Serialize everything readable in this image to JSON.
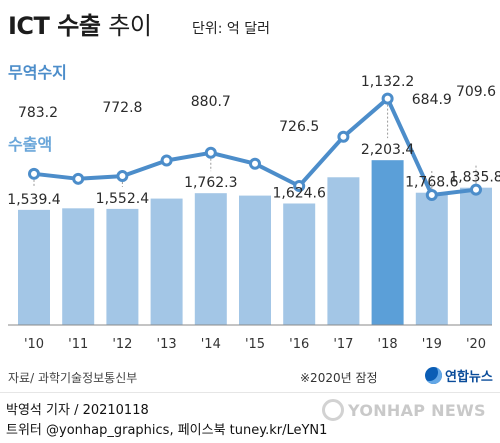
{
  "header": {
    "title_bold": "ICT 수출",
    "title_light": "추이",
    "unit": "단위: 억 달러"
  },
  "chart_data": {
    "type": "bar+line",
    "categories": [
      "'10",
      "'11",
      "'12",
      "'13",
      "'14",
      "'15",
      "'16",
      "'17",
      "'18",
      "'19",
      "'20"
    ],
    "series": [
      {
        "name": "수출액",
        "type": "bar",
        "values": [
          1539.4,
          1560,
          1552.4,
          1690,
          1762.3,
          1730,
          1624.6,
          1975,
          2203.4,
          1768.6,
          1835.8
        ],
        "labels": [
          "1,539.4",
          "",
          "1,552.4",
          "",
          "1,762.3",
          "",
          "1,624.6",
          "",
          "2,203.4",
          "1,768.6",
          "1,835.8"
        ],
        "color": "#a3c6e6",
        "highlight_index": 8,
        "highlight_color": "#5b9fd8"
      },
      {
        "name": "무역수지",
        "type": "line",
        "values": [
          783.2,
          760,
          772.8,
          845,
          880.7,
          830,
          726.5,
          955,
          1132.2,
          684.9,
          709.6
        ],
        "labels": [
          "783.2",
          "",
          "772.8",
          "",
          "880.7",
          "",
          "726.5",
          "",
          "1,132.2",
          "684.9",
          "709.6"
        ],
        "color": "#4c8dca"
      }
    ]
  },
  "footer": {
    "source": "자료/ 과학기술정보통신부",
    "note": "※2020년 잠정",
    "agency": "연합뉴스",
    "byline": "박영석 기자 /  20210118",
    "credit": "트위터 @yonhap_graphics, 페이스북 tuney.kr/LeYN1",
    "watermark": "YONHAP NEWS"
  }
}
